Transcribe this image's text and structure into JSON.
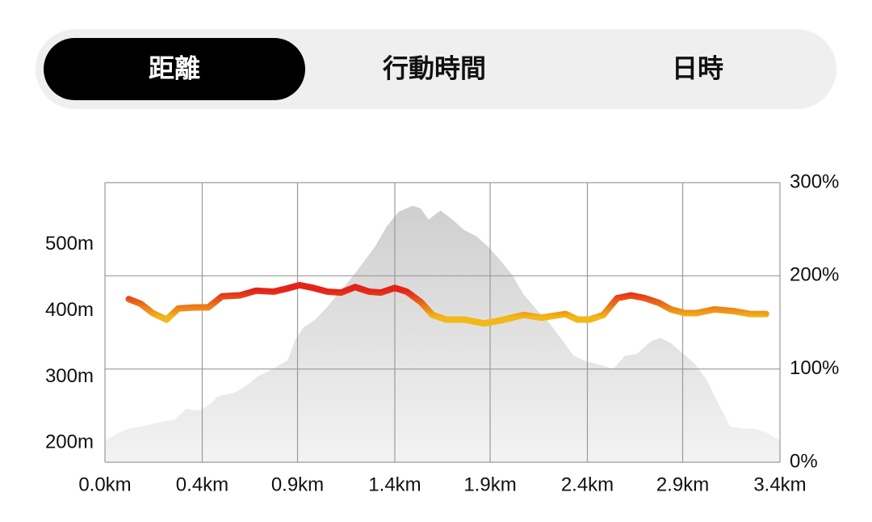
{
  "tabs": {
    "items": [
      "距離",
      "行動時間",
      "日時"
    ],
    "active": 0
  },
  "chart_data": {
    "type": "line",
    "xlim": [
      0,
      3.4
    ],
    "xticks": [
      {
        "value": 0,
        "label": "0.0km"
      },
      {
        "value": 0.49,
        "label": "0.4km"
      },
      {
        "value": 0.97,
        "label": "0.9km"
      },
      {
        "value": 1.46,
        "label": "1.4km"
      },
      {
        "value": 1.94,
        "label": "1.9km"
      },
      {
        "value": 2.43,
        "label": "2.4km"
      },
      {
        "value": 2.91,
        "label": "2.9km"
      },
      {
        "value": 3.4,
        "label": "3.4km"
      }
    ],
    "ylim": [
      171,
      594
    ],
    "yticks": [
      {
        "value": 200,
        "label": "200m"
      },
      {
        "value": 300,
        "label": "300m"
      },
      {
        "value": 400,
        "label": "400m"
      },
      {
        "value": 500,
        "label": "500m"
      }
    ],
    "y2lim": [
      0,
      300
    ],
    "y2ticks": [
      {
        "value": 0,
        "label": "0%"
      },
      {
        "value": 100,
        "label": "100%"
      },
      {
        "value": 200,
        "label": "200%"
      },
      {
        "value": 300,
        "label": "300%"
      }
    ],
    "grid": true,
    "series": [
      {
        "type": "area",
        "color": "#cfcfcf",
        "x": [
          0,
          0.06,
          0.12,
          0.2,
          0.28,
          0.35,
          0.41,
          0.47,
          0.53,
          0.57,
          0.65,
          0.71,
          0.77,
          0.85,
          0.92,
          0.96,
          1.0,
          1.06,
          1.12,
          1.18,
          1.24,
          1.3,
          1.36,
          1.42,
          1.48,
          1.55,
          1.59,
          1.63,
          1.69,
          1.75,
          1.81,
          1.87,
          1.93,
          1.99,
          2.05,
          2.11,
          2.18,
          2.24,
          2.3,
          2.36,
          2.42,
          2.5,
          2.56,
          2.62,
          2.68,
          2.75,
          2.8,
          2.85,
          2.91,
          2.97,
          3.03,
          3.09,
          3.15,
          3.21,
          3.27,
          3.33,
          3.4
        ],
        "values": [
          204,
          214,
          222,
          226,
          232,
          235,
          252,
          249,
          259,
          271,
          276,
          286,
          301,
          313,
          325,
          357,
          375,
          387,
          406,
          428,
          449,
          473,
          497,
          528,
          550,
          559,
          555,
          538,
          552,
          538,
          522,
          513,
          497,
          477,
          455,
          424,
          400,
          381,
          357,
          332,
          324,
          318,
          312,
          332,
          335,
          354,
          359,
          351,
          336,
          320,
          296,
          259,
          225,
          222,
          222,
          216,
          204
        ]
      },
      {
        "type": "line",
        "axis": "y2",
        "colors": [
          "#e3241a",
          "#f2b81a"
        ],
        "x": [
          0.12,
          0.18,
          0.24,
          0.31,
          0.37,
          0.45,
          0.52,
          0.59,
          0.68,
          0.76,
          0.85,
          0.91,
          0.98,
          1.05,
          1.12,
          1.19,
          1.26,
          1.33,
          1.39,
          1.46,
          1.52,
          1.59,
          1.65,
          1.72,
          1.81,
          1.91,
          1.99,
          2.11,
          2.2,
          2.32,
          2.38,
          2.44,
          2.51,
          2.58,
          2.65,
          2.72,
          2.79,
          2.85,
          2.92,
          2.98,
          3.07,
          3.17,
          3.25,
          3.33
        ],
        "values": [
          175,
          170,
          160,
          153,
          165,
          166,
          166,
          178,
          179,
          184,
          183,
          186,
          190,
          187,
          183,
          182,
          188,
          183,
          182,
          187,
          183,
          172,
          158,
          153,
          153,
          149,
          152,
          158,
          155,
          159,
          153,
          153,
          158,
          176,
          179,
          176,
          171,
          164,
          160,
          160,
          164,
          162,
          159,
          159
        ]
      }
    ]
  }
}
